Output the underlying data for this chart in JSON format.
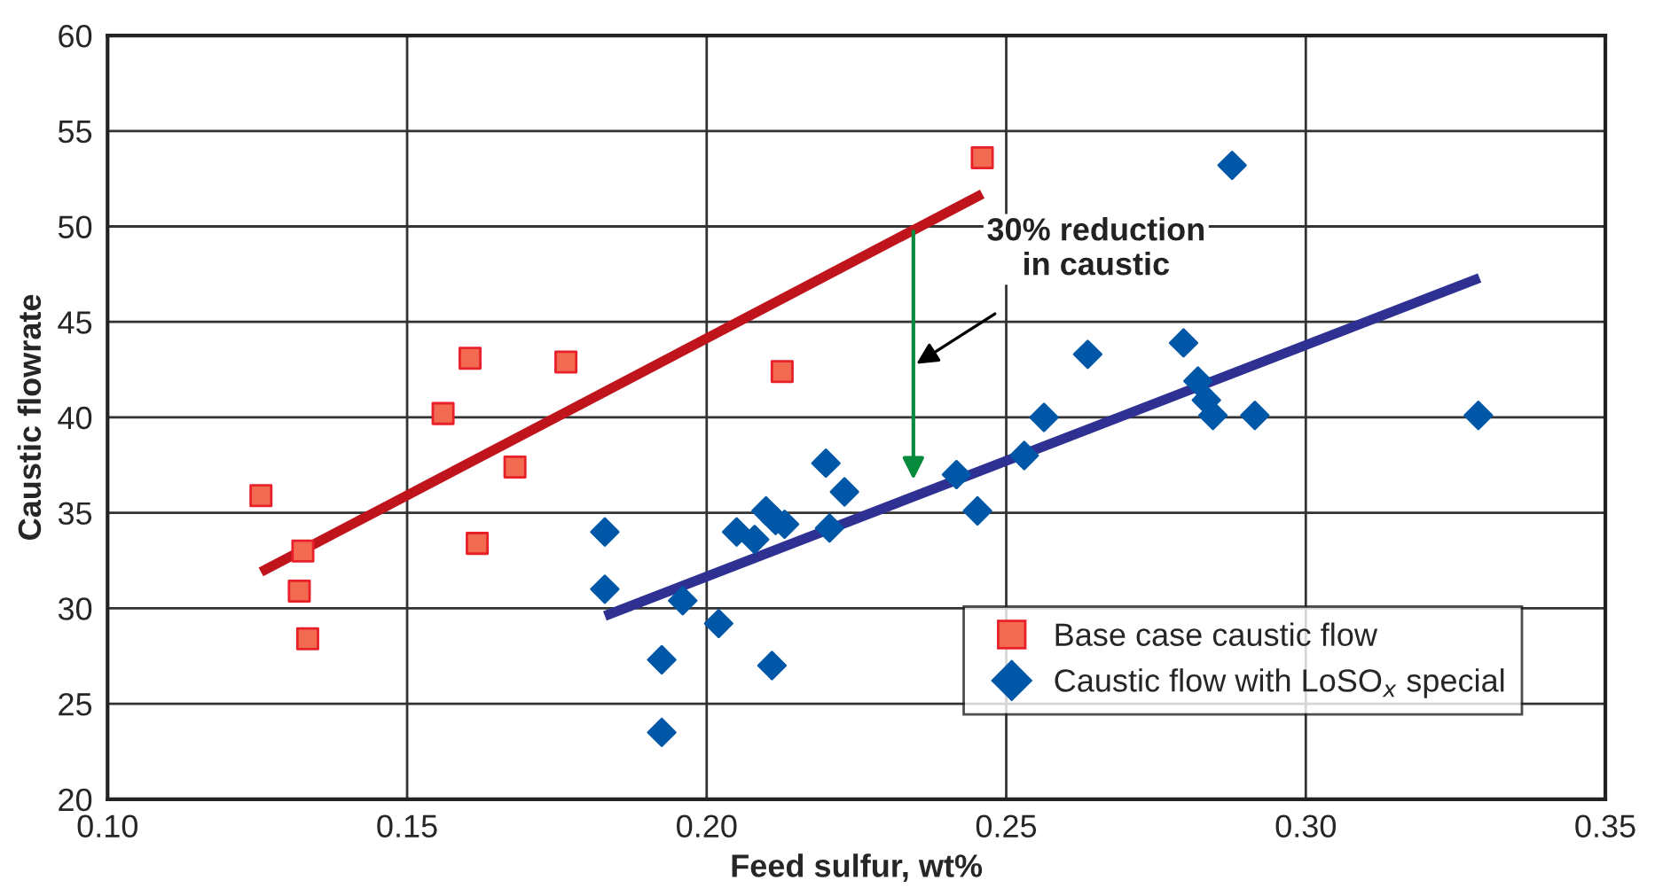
{
  "chart_data": {
    "type": "scatter",
    "xlabel": "Feed sulfur, wt%",
    "ylabel": "Caustic flowrate",
    "xlim": [
      0.1,
      0.35
    ],
    "xticks": [
      {
        "value": 0.1,
        "label": "0.10"
      },
      {
        "value": 0.15,
        "label": "0.15"
      },
      {
        "value": 0.2,
        "label": "0.20"
      },
      {
        "value": 0.25,
        "label": "0.25"
      },
      {
        "value": 0.3,
        "label": "0.30"
      },
      {
        "value": 0.35,
        "label": "0.35"
      }
    ],
    "ylim": [
      20,
      60
    ],
    "yticks": [
      20,
      25,
      30,
      35,
      40,
      45,
      50,
      55,
      60
    ],
    "grid": true,
    "legend": "bottom right",
    "series": [
      {
        "type": "line",
        "color": "#c0141c",
        "x": [
          0.1256,
          0.246
        ],
        "values": [
          31.9,
          51.7
        ]
      },
      {
        "type": "line",
        "color": "#2e3192",
        "x": [
          0.183,
          0.329
        ],
        "values": [
          29.6,
          47.3
        ]
      },
      {
        "name": "Base case caustic flow",
        "color": "#f26b50",
        "marker": "square",
        "x": [
          0.1256,
          0.1326,
          0.132,
          0.1334,
          0.156,
          0.1605,
          0.1617,
          0.168,
          0.1765,
          0.2126,
          0.246
        ],
        "values": [
          35.9,
          33.0,
          30.9,
          28.4,
          40.2,
          43.1,
          33.4,
          37.4,
          42.9,
          42.4,
          53.6
        ]
      },
      {
        "name": "Caustic flow with LoSO$_{x}$ special",
        "color": "#0057a8",
        "marker": "diamond",
        "x": [
          0.183,
          0.183,
          0.1925,
          0.1925,
          0.196,
          0.202,
          0.205,
          0.208,
          0.2099,
          0.2115,
          0.213,
          0.2109,
          0.2199,
          0.2205,
          0.223,
          0.2417,
          0.2452,
          0.253,
          0.2563,
          0.2636,
          0.2796,
          0.282,
          0.2834,
          0.2845,
          0.2915,
          0.2877,
          0.3288
        ],
        "values": [
          34.0,
          31.0,
          27.3,
          23.5,
          30.4,
          29.2,
          34.0,
          33.6,
          35.1,
          34.6,
          34.4,
          27.0,
          37.6,
          34.2,
          36.1,
          37.0,
          35.1,
          38.0,
          40.0,
          43.3,
          43.9,
          41.9,
          40.9,
          40.1,
          40.1,
          53.2,
          40.1
        ]
      }
    ],
    "annotations": [
      "30% reduction\nin caustic"
    ]
  }
}
